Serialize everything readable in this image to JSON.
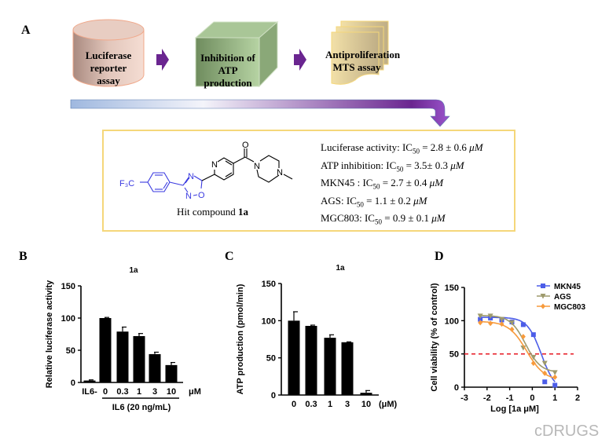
{
  "panel_a": {
    "label": "A",
    "steps": [
      {
        "line1": "Luciferase reporter",
        "line2": "assay"
      },
      {
        "line1": "Inhibition of ATP",
        "line2": "production"
      },
      {
        "line1": "Antiproliferation",
        "line2": "MTS assay"
      }
    ],
    "compound": {
      "caption_prefix": "Hit compound",
      "caption_bold": "1a",
      "atoms": {
        "cf3": "F₃C",
        "n_a": "N",
        "n_b": "N",
        "o": "O",
        "n_pyr": "N",
        "o_carbonyl": "O",
        "n_pip1": "N",
        "n_pip2": "N"
      }
    },
    "ic50": [
      {
        "label": "Luciferase activity: IC",
        "sub": "50",
        "value": " =  2.8 ± 0.6 ",
        "unit": "μM"
      },
      {
        "label": "ATP inhibition: IC",
        "sub": "50",
        "value": " = 3.5± 0.3 ",
        "unit": "μM"
      },
      {
        "label": "MKN45 : IC",
        "sub": "50",
        "value": " = 2.7 ± 0.4 ",
        "unit": "μM"
      },
      {
        "label": "AGS: IC",
        "sub": "50",
        "value": " = 1.1 ± 0.2 ",
        "unit": "μM"
      },
      {
        "label": "MGC803: IC",
        "sub": "50",
        "value": " = 0.9 ± 0.1 ",
        "unit": "μM"
      }
    ]
  },
  "colors": {
    "arrow": "#6a2a9a",
    "box_border": "#f5d77a",
    "blue_structure": "#3a3ae0"
  },
  "watermark": "cDRUGS",
  "chart_data": [
    {
      "panel": "B",
      "type": "bar",
      "title": "1a",
      "ylabel": "Relative luciferase activity",
      "xlabel": "",
      "unit_label": "μM",
      "group_label": "IL6 (20 ng/mL)",
      "categories": [
        "IL6-",
        "0",
        "0.3",
        "1",
        "3",
        "10"
      ],
      "values": [
        3,
        100,
        79,
        72,
        44,
        27
      ],
      "errors": [
        1,
        1,
        7,
        4,
        3,
        4
      ],
      "ylim": [
        0,
        150
      ],
      "yticks": [
        0,
        50,
        100,
        150
      ]
    },
    {
      "panel": "C",
      "type": "bar",
      "title": "1a",
      "ylabel": "ATP production (pmol/min)",
      "xlabel": "",
      "unit_label": "(μM)",
      "categories": [
        "0",
        "0.3",
        "1",
        "3",
        "10"
      ],
      "values": [
        100,
        93,
        77,
        71,
        3
      ],
      "errors": [
        12,
        1,
        4,
        0.5,
        3
      ],
      "ylim": [
        0,
        150
      ],
      "yticks": [
        0,
        50,
        100,
        150
      ]
    },
    {
      "panel": "D",
      "type": "scatter",
      "ylabel": "Cell viability (% of control)",
      "xlabel": "Log [1a μM]",
      "xlim": [
        -3,
        2
      ],
      "ylim": [
        0,
        150
      ],
      "xticks": [
        -3,
        -2,
        -1,
        0,
        1,
        2
      ],
      "yticks": [
        0,
        50,
        100,
        150
      ],
      "reference_line": 50,
      "legend": "top-right",
      "x": [
        -2.3,
        -1.85,
        -1.35,
        -0.9,
        -0.4,
        0.05,
        0.55,
        1.0
      ],
      "series": [
        {
          "name": "MKN45",
          "color": "#4c5de8",
          "marker": "square",
          "values": [
            102,
            104,
            101,
            98,
            94,
            79,
            8,
            3
          ],
          "fit": {
            "top": 105,
            "bottom": -6,
            "log_ic50": 0.4,
            "hill": 1.4
          }
        },
        {
          "name": "AGS",
          "color": "#9e9a6c",
          "marker": "triangle-down",
          "values": [
            107,
            107,
            102,
            97,
            59,
            45,
            36,
            22
          ],
          "fit": {
            "top": 108,
            "bottom": 22,
            "log_ic50": -0.3,
            "hill": 1.3
          }
        },
        {
          "name": "MGC803",
          "color": "#f79a3c",
          "marker": "diamond",
          "values": [
            97,
            96,
            95,
            87,
            76,
            36,
            21,
            15
          ],
          "fit": {
            "top": 99,
            "bottom": 10,
            "log_ic50": -0.25,
            "hill": 1.1
          }
        }
      ]
    }
  ]
}
